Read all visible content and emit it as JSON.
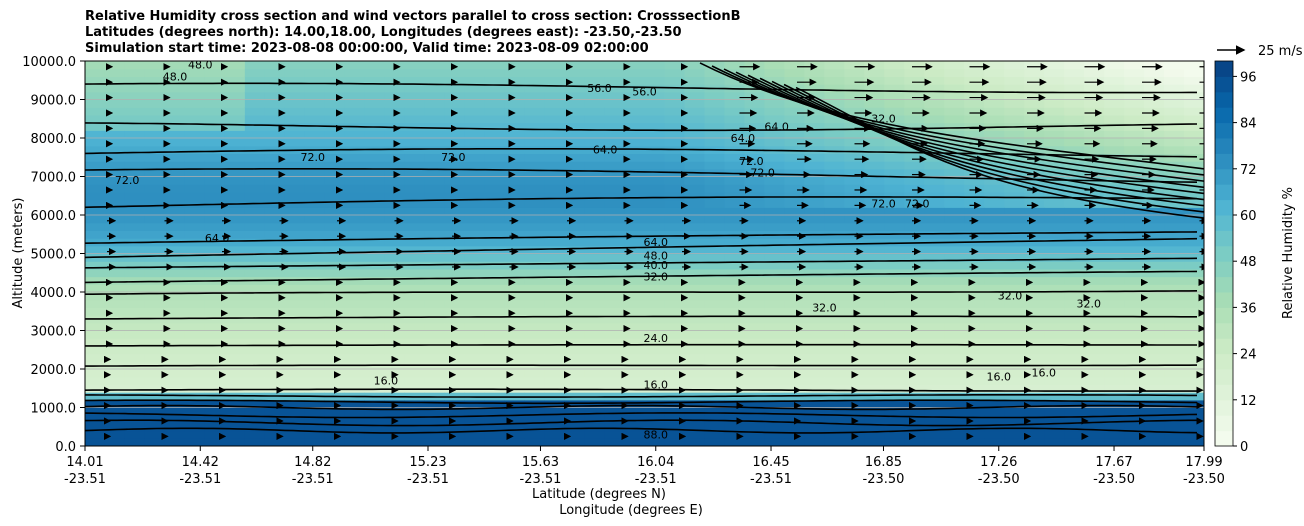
{
  "title_lines": [
    "Relative Humidity cross section and wind vectors parallel to cross section: CrosssectionB",
    "Latitudes (degrees north): 14.00,18.00, Longitudes (degrees east): -23.50,-23.50",
    "Simulation start time: 2023-08-08 00:00:00, Valid time: 2023-08-09 02:00:00"
  ],
  "chart_data": {
    "type": "contour",
    "ylabel": "Altitude (meters)",
    "xlabel": "Latitude (degrees N)",
    "xlabel2": "Longitude (degrees E)",
    "ylim": [
      0,
      10000
    ],
    "yticks": [
      "0.0",
      "1000.0",
      "2000.0",
      "3000.0",
      "4000.0",
      "5000.0",
      "6000.0",
      "7000.0",
      "8000.0",
      "9000.0",
      "10000.0"
    ],
    "xticks": [
      {
        "lat": "14.01",
        "lon": "-23.51"
      },
      {
        "lat": "14.42",
        "lon": "-23.51"
      },
      {
        "lat": "14.82",
        "lon": "-23.51"
      },
      {
        "lat": "15.23",
        "lon": "-23.51"
      },
      {
        "lat": "15.63",
        "lon": "-23.51"
      },
      {
        "lat": "16.04",
        "lon": "-23.51"
      },
      {
        "lat": "16.45",
        "lon": "-23.51"
      },
      {
        "lat": "16.85",
        "lon": "-23.50"
      },
      {
        "lat": "17.26",
        "lon": "-23.50"
      },
      {
        "lat": "17.67",
        "lon": "-23.50"
      },
      {
        "lat": "17.99",
        "lon": "-23.50"
      }
    ],
    "grid": "horizontal",
    "colorbar": {
      "label": "Relative Humidity %",
      "ticks": [
        "0",
        "12",
        "24",
        "36",
        "48",
        "60",
        "72",
        "84",
        "96"
      ],
      "range": [
        0,
        100
      ],
      "colormap": "GnBu"
    },
    "quiver_key": "25 m/s",
    "contour_levels": [
      "16.0",
      "24.0",
      "32.0",
      "40.0",
      "48.0",
      "64.0",
      "72.0",
      "88.0"
    ],
    "contour_labels": [
      {
        "text": "64.0",
        "x": 16.04,
        "y": 5200
      },
      {
        "text": "48.0",
        "x": 16.04,
        "y": 4850
      },
      {
        "text": "40.0",
        "x": 16.04,
        "y": 4600
      },
      {
        "text": "32.0",
        "x": 16.04,
        "y": 4300
      },
      {
        "text": "24.0",
        "x": 16.04,
        "y": 2700
      },
      {
        "text": "16.0",
        "x": 16.04,
        "y": 1500
      },
      {
        "text": "88.0",
        "x": 16.04,
        "y": 200
      },
      {
        "text": "72.0",
        "x": 14.16,
        "y": 6800
      },
      {
        "text": "72.0",
        "x": 14.82,
        "y": 7400
      },
      {
        "text": "72.0",
        "x": 15.32,
        "y": 7400
      },
      {
        "text": "64.0",
        "x": 14.48,
        "y": 5300
      },
      {
        "text": "64.0",
        "x": 16.35,
        "y": 7900
      },
      {
        "text": "64.0",
        "x": 16.47,
        "y": 8200
      },
      {
        "text": "72.0",
        "x": 16.42,
        "y": 7000
      },
      {
        "text": "72.0",
        "x": 16.38,
        "y": 7300
      },
      {
        "text": "72.0",
        "x": 16.85,
        "y": 6200
      },
      {
        "text": "72.0",
        "x": 16.97,
        "y": 6200
      },
      {
        "text": "32.0",
        "x": 16.85,
        "y": 8400
      },
      {
        "text": "56.0",
        "x": 16.0,
        "y": 9100
      },
      {
        "text": "56.0",
        "x": 15.84,
        "y": 9200
      },
      {
        "text": "48.0",
        "x": 14.33,
        "y": 9500
      },
      {
        "text": "48.0",
        "x": 14.42,
        "y": 9800
      },
      {
        "text": "64.0",
        "x": 15.86,
        "y": 7600
      },
      {
        "text": "32.0",
        "x": 17.3,
        "y": 3800
      },
      {
        "text": "32.0",
        "x": 17.58,
        "y": 3600
      },
      {
        "text": "32.0",
        "x": 16.64,
        "y": 3500
      },
      {
        "text": "16.0",
        "x": 15.08,
        "y": 1600
      },
      {
        "text": "16.0",
        "x": 17.26,
        "y": 1700
      },
      {
        "text": "16.0",
        "x": 17.42,
        "y": 1800
      }
    ]
  }
}
